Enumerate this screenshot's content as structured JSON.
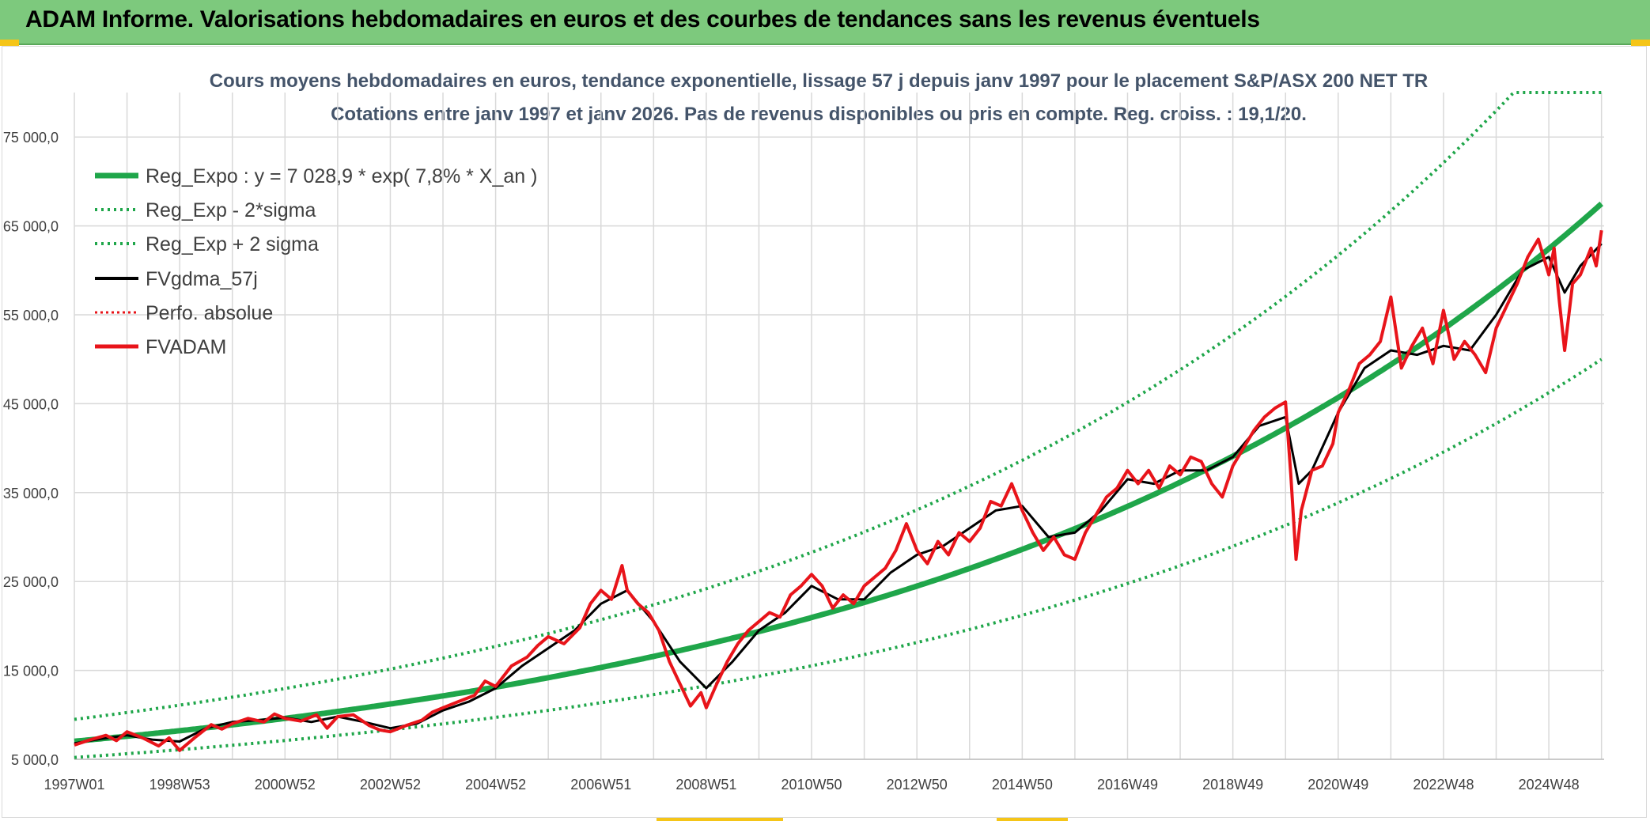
{
  "header": {
    "title": "ADAM Informe. Valorisations hebdomadaires en euros et des courbes de tendances sans les revenus éventuels"
  },
  "colors": {
    "header_bg": "#7dc97d",
    "reg_expo": "#1fa64a",
    "fvgdma": "#000000",
    "fvadam": "#e8141a",
    "perfo": "#e8141a",
    "grid": "#d9d9d9"
  },
  "chart_data": {
    "type": "line",
    "title": "Cours moyens hebdomadaires en euros, tendance exponentielle, lissage 57 j depuis janv 1997 pour le placement S&P/ASX 200 NET TR",
    "subtitle": "Cotations entre janv 1997 et janv 2026. Pas de revenus disponibles ou pris en compte. Reg. croiss. : 19,1/20.",
    "xlabel": "",
    "ylabel": "",
    "xlim": [
      1997.0,
      2026.05
    ],
    "ylim": [
      5000,
      80000
    ],
    "grid": true,
    "legend_position": "top-left",
    "x_tick_values": [
      1997.0,
      1999.0,
      2001.0,
      2003.0,
      2005.0,
      2007.0,
      2009.0,
      2011.0,
      2013.0,
      2015.0,
      2017.0,
      2019.0,
      2021.0,
      2023.0,
      2025.0
    ],
    "x_tick_labels": [
      "1997W01",
      "1998W53",
      "2000W52",
      "2002W52",
      "2004W52",
      "2006W51",
      "2008W51",
      "2010W50",
      "2012W50",
      "2014W50",
      "2016W49",
      "2018W49",
      "2020W49",
      "2022W48",
      "2024W48"
    ],
    "y_tick_values": [
      5000,
      15000,
      25000,
      35000,
      45000,
      55000,
      65000,
      75000
    ],
    "y_tick_labels": [
      "5 000,0",
      "15 000,0",
      "25 000,0",
      "35 000,0",
      "45 000,0",
      "55 000,0",
      "65 000,0",
      "75 000,0"
    ],
    "regression": {
      "a": 7028.9,
      "rate": 0.078,
      "start": 1997.0,
      "sigma_factor": 1.35,
      "cap": 80000
    },
    "series": [
      {
        "name": "Reg_Expo : y = 7 028,9 * exp( 7,8% *  X_an )",
        "style": "solid-thick",
        "color": "#1fa64a"
      },
      {
        "name": "Reg_Exp - 2*sigma",
        "style": "dotted",
        "color": "#1fa64a"
      },
      {
        "name": "Reg_Exp + 2 sigma",
        "style": "dotted",
        "color": "#1fa64a"
      },
      {
        "name": "FVgdma_57j",
        "style": "solid",
        "color": "#000000",
        "points": [
          [
            1997.0,
            6800
          ],
          [
            1997.5,
            7300
          ],
          [
            1998.0,
            7700
          ],
          [
            1998.5,
            7200
          ],
          [
            1999.0,
            7000
          ],
          [
            1999.5,
            8500
          ],
          [
            2000.0,
            9200
          ],
          [
            2000.5,
            9400
          ],
          [
            2001.0,
            9700
          ],
          [
            2001.5,
            9200
          ],
          [
            2002.0,
            9800
          ],
          [
            2002.5,
            9200
          ],
          [
            2003.0,
            8500
          ],
          [
            2003.5,
            9000
          ],
          [
            2004.0,
            10500
          ],
          [
            2004.5,
            11500
          ],
          [
            2005.0,
            13000
          ],
          [
            2005.5,
            15500
          ],
          [
            2006.0,
            17500
          ],
          [
            2006.5,
            19500
          ],
          [
            2007.0,
            22500
          ],
          [
            2007.5,
            24000
          ],
          [
            2008.0,
            20500
          ],
          [
            2008.5,
            16000
          ],
          [
            2009.0,
            13000
          ],
          [
            2009.5,
            16000
          ],
          [
            2010.0,
            19500
          ],
          [
            2010.5,
            21500
          ],
          [
            2011.0,
            24500
          ],
          [
            2011.5,
            23000
          ],
          [
            2012.0,
            23000
          ],
          [
            2012.5,
            26000
          ],
          [
            2013.0,
            28000
          ],
          [
            2013.5,
            29000
          ],
          [
            2014.0,
            31000
          ],
          [
            2014.5,
            33000
          ],
          [
            2015.0,
            33500
          ],
          [
            2015.5,
            30000
          ],
          [
            2016.0,
            30500
          ],
          [
            2016.5,
            33000
          ],
          [
            2017.0,
            36500
          ],
          [
            2017.5,
            36000
          ],
          [
            2018.0,
            37500
          ],
          [
            2018.5,
            37500
          ],
          [
            2019.0,
            39000
          ],
          [
            2019.5,
            42500
          ],
          [
            2020.0,
            43500
          ],
          [
            2020.25,
            36000
          ],
          [
            2020.5,
            37500
          ],
          [
            2021.0,
            44000
          ],
          [
            2021.5,
            49000
          ],
          [
            2022.0,
            51000
          ],
          [
            2022.5,
            50500
          ],
          [
            2023.0,
            51500
          ],
          [
            2023.5,
            51000
          ],
          [
            2024.0,
            55000
          ],
          [
            2024.5,
            60000
          ],
          [
            2025.0,
            61500
          ],
          [
            2025.3,
            57500
          ],
          [
            2025.6,
            60500
          ],
          [
            2026.0,
            63000
          ]
        ]
      },
      {
        "name": "Perfo. absolue",
        "style": "dotted",
        "color": "#e8141a"
      },
      {
        "name": "FVADAM",
        "style": "solid-thick",
        "color": "#e8141a",
        "points": [
          [
            1997.0,
            6600
          ],
          [
            1997.3,
            7200
          ],
          [
            1997.6,
            7700
          ],
          [
            1997.8,
            7100
          ],
          [
            1998.0,
            8100
          ],
          [
            1998.3,
            7400
          ],
          [
            1998.6,
            6500
          ],
          [
            1998.8,
            7400
          ],
          [
            1999.0,
            6000
          ],
          [
            1999.3,
            7500
          ],
          [
            1999.6,
            8900
          ],
          [
            1999.8,
            8400
          ],
          [
            2000.0,
            9000
          ],
          [
            2000.3,
            9600
          ],
          [
            2000.6,
            9200
          ],
          [
            2000.8,
            10100
          ],
          [
            2001.0,
            9600
          ],
          [
            2001.3,
            9300
          ],
          [
            2001.6,
            10000
          ],
          [
            2001.8,
            8500
          ],
          [
            2002.0,
            9800
          ],
          [
            2002.3,
            10000
          ],
          [
            2002.6,
            8800
          ],
          [
            2002.8,
            8300
          ],
          [
            2003.0,
            8100
          ],
          [
            2003.3,
            8800
          ],
          [
            2003.6,
            9400
          ],
          [
            2003.8,
            10300
          ],
          [
            2004.0,
            10800
          ],
          [
            2004.3,
            11500
          ],
          [
            2004.6,
            12200
          ],
          [
            2004.8,
            13800
          ],
          [
            2005.0,
            13200
          ],
          [
            2005.3,
            15500
          ],
          [
            2005.6,
            16500
          ],
          [
            2005.8,
            17800
          ],
          [
            2006.0,
            18800
          ],
          [
            2006.3,
            18000
          ],
          [
            2006.6,
            19800
          ],
          [
            2006.8,
            22500
          ],
          [
            2007.0,
            24000
          ],
          [
            2007.2,
            23000
          ],
          [
            2007.4,
            26800
          ],
          [
            2007.5,
            24000
          ],
          [
            2007.7,
            22500
          ],
          [
            2007.9,
            21500
          ],
          [
            2008.1,
            19500
          ],
          [
            2008.3,
            16000
          ],
          [
            2008.5,
            13500
          ],
          [
            2008.7,
            11000
          ],
          [
            2008.9,
            12500
          ],
          [
            2009.0,
            10800
          ],
          [
            2009.2,
            13500
          ],
          [
            2009.4,
            16000
          ],
          [
            2009.6,
            18000
          ],
          [
            2009.8,
            19500
          ],
          [
            2010.0,
            20500
          ],
          [
            2010.2,
            21500
          ],
          [
            2010.4,
            21000
          ],
          [
            2010.6,
            23500
          ],
          [
            2010.8,
            24500
          ],
          [
            2011.0,
            25800
          ],
          [
            2011.2,
            24500
          ],
          [
            2011.4,
            22000
          ],
          [
            2011.6,
            23500
          ],
          [
            2011.8,
            22500
          ],
          [
            2012.0,
            24500
          ],
          [
            2012.2,
            25500
          ],
          [
            2012.4,
            26500
          ],
          [
            2012.6,
            28500
          ],
          [
            2012.8,
            31500
          ],
          [
            2013.0,
            28500
          ],
          [
            2013.2,
            27000
          ],
          [
            2013.4,
            29500
          ],
          [
            2013.6,
            28000
          ],
          [
            2013.8,
            30500
          ],
          [
            2014.0,
            29500
          ],
          [
            2014.2,
            31000
          ],
          [
            2014.4,
            34000
          ],
          [
            2014.6,
            33500
          ],
          [
            2014.8,
            36000
          ],
          [
            2015.0,
            33000
          ],
          [
            2015.2,
            30500
          ],
          [
            2015.4,
            28500
          ],
          [
            2015.6,
            30000
          ],
          [
            2015.8,
            28000
          ],
          [
            2016.0,
            27500
          ],
          [
            2016.2,
            30500
          ],
          [
            2016.4,
            32500
          ],
          [
            2016.6,
            34500
          ],
          [
            2016.8,
            35500
          ],
          [
            2017.0,
            37500
          ],
          [
            2017.2,
            36000
          ],
          [
            2017.4,
            37500
          ],
          [
            2017.6,
            35500
          ],
          [
            2017.8,
            38000
          ],
          [
            2018.0,
            37000
          ],
          [
            2018.2,
            39000
          ],
          [
            2018.4,
            38500
          ],
          [
            2018.6,
            36000
          ],
          [
            2018.8,
            34500
          ],
          [
            2019.0,
            38000
          ],
          [
            2019.2,
            40000
          ],
          [
            2019.4,
            42000
          ],
          [
            2019.6,
            43500
          ],
          [
            2019.8,
            44500
          ],
          [
            2020.0,
            45200
          ],
          [
            2020.1,
            37000
          ],
          [
            2020.2,
            27500
          ],
          [
            2020.3,
            33000
          ],
          [
            2020.5,
            37500
          ],
          [
            2020.7,
            38000
          ],
          [
            2020.9,
            40500
          ],
          [
            2021.0,
            44000
          ],
          [
            2021.2,
            46500
          ],
          [
            2021.4,
            49500
          ],
          [
            2021.6,
            50500
          ],
          [
            2021.8,
            52000
          ],
          [
            2022.0,
            57000
          ],
          [
            2022.2,
            49000
          ],
          [
            2022.4,
            51500
          ],
          [
            2022.6,
            53500
          ],
          [
            2022.8,
            49500
          ],
          [
            2023.0,
            55500
          ],
          [
            2023.2,
            50000
          ],
          [
            2023.4,
            52000
          ],
          [
            2023.6,
            50500
          ],
          [
            2023.8,
            48500
          ],
          [
            2024.0,
            53500
          ],
          [
            2024.2,
            56000
          ],
          [
            2024.4,
            58500
          ],
          [
            2024.6,
            61500
          ],
          [
            2024.8,
            63500
          ],
          [
            2025.0,
            59500
          ],
          [
            2025.1,
            62500
          ],
          [
            2025.2,
            56500
          ],
          [
            2025.3,
            51000
          ],
          [
            2025.45,
            58500
          ],
          [
            2025.6,
            59500
          ],
          [
            2025.8,
            62500
          ],
          [
            2025.9,
            60500
          ],
          [
            2026.0,
            64500
          ]
        ]
      }
    ]
  }
}
